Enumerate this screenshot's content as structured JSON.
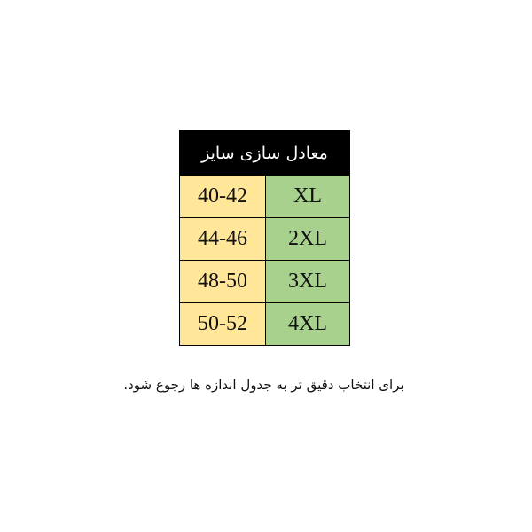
{
  "table": {
    "title": "معادل سازی سایز",
    "rows": [
      {
        "range": "40-42",
        "size": "XL"
      },
      {
        "range": "44-46",
        "size": "2XL"
      },
      {
        "range": "48-50",
        "size": "3XL"
      },
      {
        "range": "50-52",
        "size": "4XL"
      }
    ],
    "colors": {
      "header_bg": "#000000",
      "range_bg": "#FFE699",
      "size_bg": "#A9D18E"
    }
  },
  "note": "برای انتخاب دقیق تر به جدول اندازه ها رجوع شود."
}
